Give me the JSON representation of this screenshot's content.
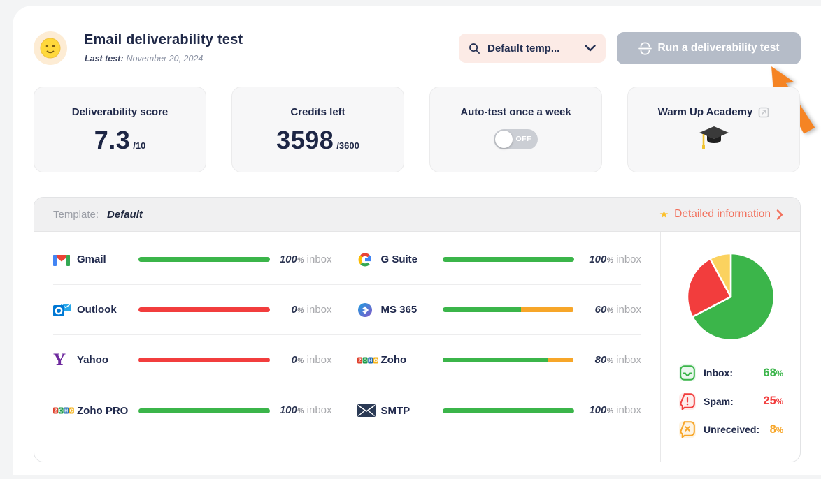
{
  "header": {
    "title": "Email deliverability test",
    "last_test_label": "Last test:",
    "last_test_value": "November 20, 2024",
    "template_dropdown_value": "Default temp...",
    "run_button_label": "Run a deliverability test"
  },
  "stats": [
    {
      "title": "Deliverability score",
      "value": "7.3",
      "suffix": "/10"
    },
    {
      "title": "Credits left",
      "value": "3598",
      "suffix": "/3600"
    },
    {
      "title": "Auto-test once a week",
      "toggle_label": "OFF",
      "toggle_state": "off"
    },
    {
      "title": "Warm Up Academy"
    }
  ],
  "panel": {
    "template_label": "Template:",
    "template_value": "Default",
    "detailed_link_label": "Detailed information"
  },
  "misc": {
    "percent": "%",
    "inbox": "inbox"
  },
  "providers": [
    {
      "name": "Gmail",
      "pct": "100",
      "segments": [
        {
          "pct": 100,
          "color": "#3bb54a"
        }
      ]
    },
    {
      "name": "G Suite",
      "pct": "100",
      "segments": [
        {
          "pct": 100,
          "color": "#3bb54a"
        }
      ]
    },
    {
      "name": "Outlook",
      "pct": "0",
      "segments": [
        {
          "pct": 100,
          "color": "#f23d3d"
        }
      ]
    },
    {
      "name": "MS 365",
      "pct": "60",
      "segments": [
        {
          "pct": 60,
          "color": "#3bb54a"
        },
        {
          "pct": 40,
          "color": "#f7a629"
        }
      ]
    },
    {
      "name": "Yahoo",
      "pct": "0",
      "segments": [
        {
          "pct": 100,
          "color": "#f23d3d"
        }
      ]
    },
    {
      "name": "Zoho",
      "pct": "80",
      "segments": [
        {
          "pct": 80,
          "color": "#3bb54a"
        },
        {
          "pct": 20,
          "color": "#f7a629"
        }
      ]
    },
    {
      "name": "Zoho PRO",
      "pct": "100",
      "segments": [
        {
          "pct": 100,
          "color": "#3bb54a"
        }
      ]
    },
    {
      "name": "SMTP",
      "pct": "100",
      "segments": [
        {
          "pct": 100,
          "color": "#3bb54a"
        }
      ]
    }
  ],
  "chart_data": {
    "type": "pie",
    "title": "",
    "slices": [
      {
        "label": "Inbox",
        "value": 68,
        "color": "#3bb54a"
      },
      {
        "label": "Spam",
        "value": 25,
        "color": "#f23d3d"
      },
      {
        "label": "Unreceived",
        "value": 8,
        "color": "#fbd25f"
      }
    ],
    "legend_position": "bottom-right"
  },
  "legend": [
    {
      "label": "Inbox:",
      "value": "68",
      "value_color": "#3bb54a",
      "icon": "inbox-tray-icon"
    },
    {
      "label": "Spam:",
      "value": "25",
      "value_color": "#f23d3d",
      "icon": "spam-bubble-icon"
    },
    {
      "label": "Unreceived:",
      "value": "8",
      "value_color": "#f7a629",
      "icon": "unreceived-bubble-icon"
    }
  ],
  "colors": {
    "accent_coral": "#f2705c",
    "star_yellow": "#fcc029",
    "arrow_orange": "#f58424",
    "dropdown_pink": "#fcebe6",
    "disabled_button_gray": "#b5bcc8",
    "navy_text": "#20294a",
    "bar_green": "#3bb54a",
    "bar_red": "#f23d3d",
    "bar_orange": "#f7a629",
    "pie_yellow": "#fbd25f"
  }
}
